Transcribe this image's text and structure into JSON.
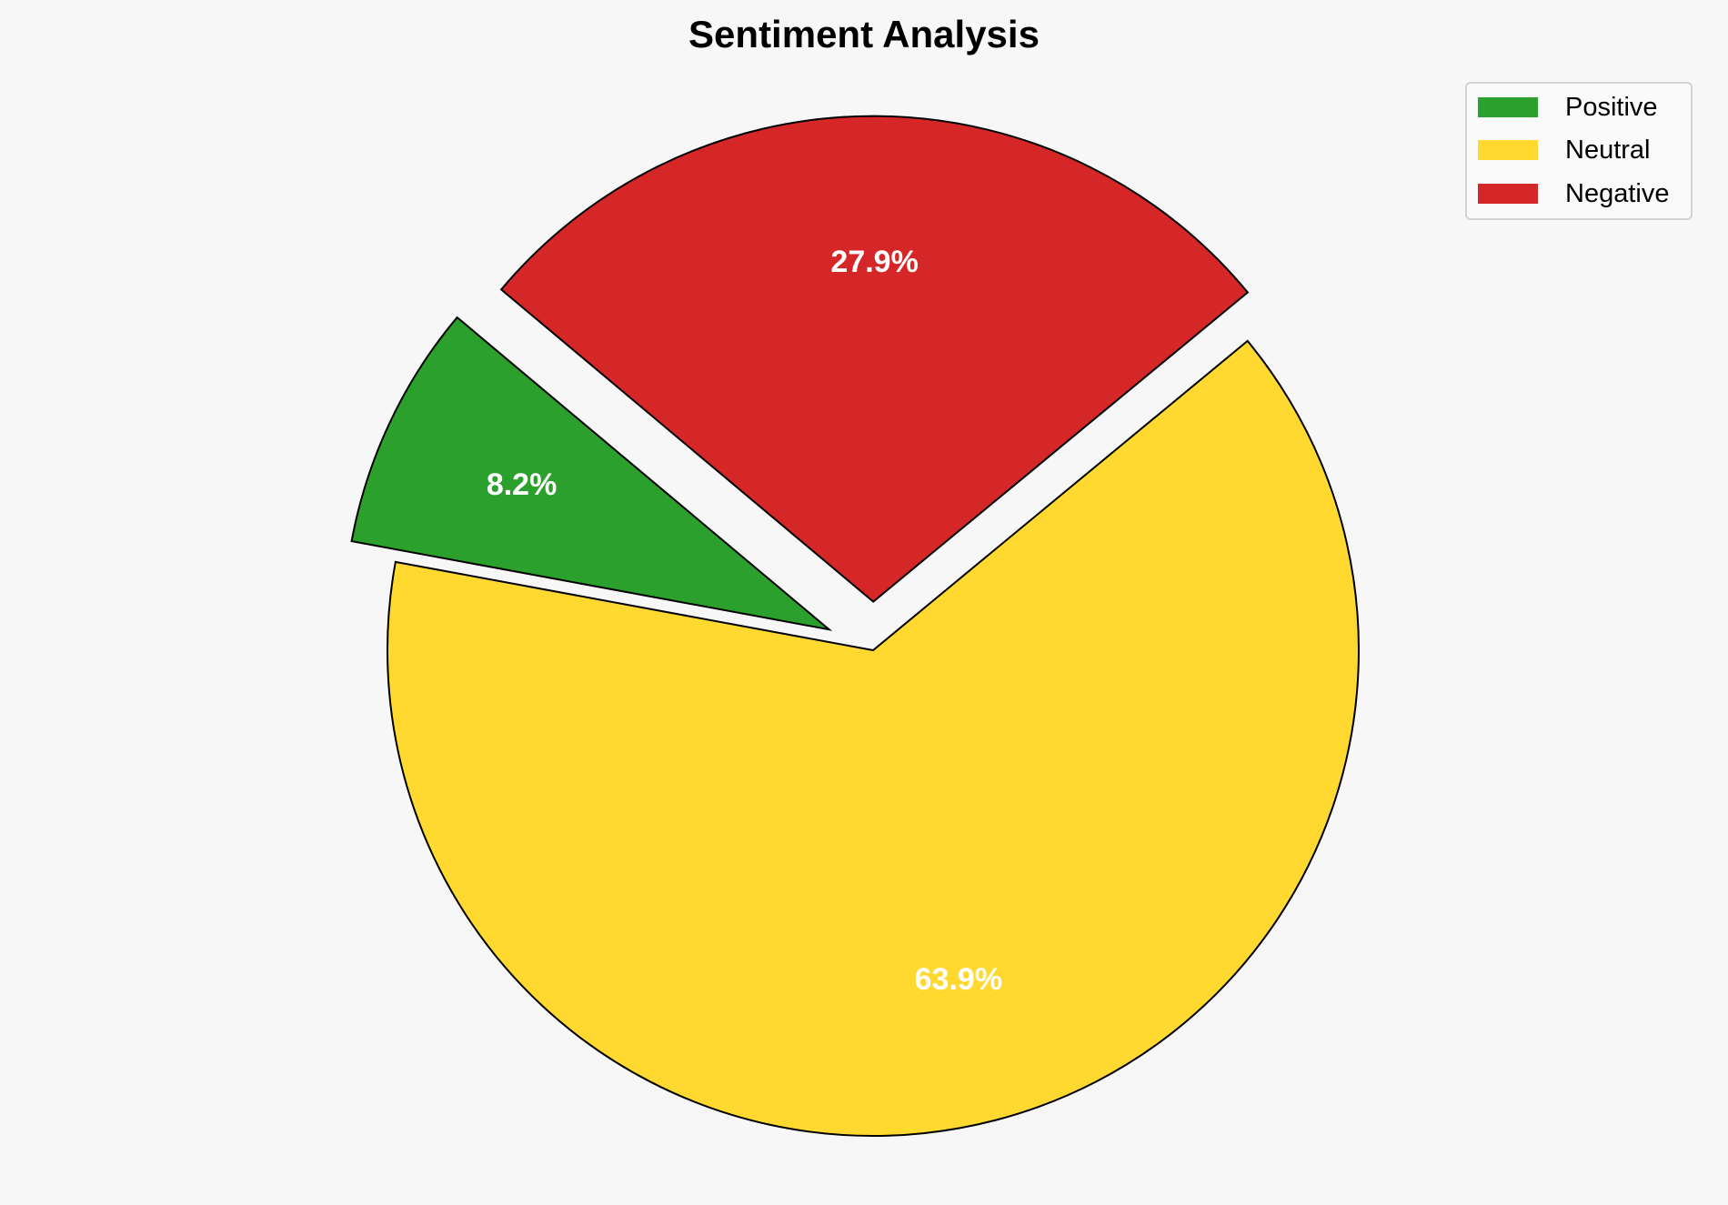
{
  "chart_data": {
    "type": "pie",
    "title": "Sentiment Analysis",
    "categories": [
      "Positive",
      "Neutral",
      "Negative"
    ],
    "values": [
      8.2,
      63.9,
      27.9
    ],
    "labels": [
      "8.2%",
      "63.9%",
      "27.9%"
    ],
    "colors": [
      "#2ca02c",
      "#ffd92f",
      "#d62728"
    ],
    "explode": [
      0.1,
      0,
      0.1
    ],
    "start_angle_deg": 140,
    "direction": "counterclockwise",
    "edge_color": "#000000",
    "label_color": "#ffffff",
    "legend_position": "top-right"
  }
}
